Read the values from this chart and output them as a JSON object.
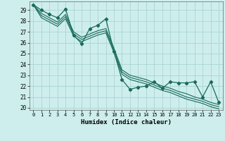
{
  "xlabel": "Humidex (Indice chaleur)",
  "bg_color": "#ceeeed",
  "grid_color": "#aed8d4",
  "line_color": "#1a6b5a",
  "xlim": [
    -0.5,
    23.5
  ],
  "ylim": [
    19.8,
    29.8
  ],
  "yticks": [
    20,
    21,
    22,
    23,
    24,
    25,
    26,
    27,
    28,
    29
  ],
  "xticks": [
    0,
    1,
    2,
    3,
    4,
    5,
    6,
    7,
    8,
    9,
    10,
    11,
    12,
    13,
    14,
    15,
    16,
    17,
    18,
    19,
    20,
    21,
    22,
    23
  ],
  "series": [
    [
      29.5,
      29.0,
      28.6,
      28.3,
      29.1,
      26.7,
      25.9,
      27.3,
      27.6,
      28.2,
      25.2,
      22.6,
      21.7,
      21.9,
      22.0,
      22.4,
      21.8,
      22.4,
      22.3,
      22.3,
      22.4,
      21.0,
      22.4,
      20.5
    ],
    [
      29.5,
      28.7,
      28.3,
      27.9,
      28.6,
      27.0,
      26.5,
      26.8,
      27.1,
      27.3,
      25.5,
      23.5,
      23.0,
      22.8,
      22.6,
      22.3,
      22.0,
      21.8,
      21.5,
      21.3,
      21.0,
      20.8,
      20.5,
      20.3
    ],
    [
      29.5,
      28.5,
      28.1,
      27.7,
      28.4,
      26.8,
      26.3,
      26.6,
      26.9,
      27.1,
      25.3,
      23.3,
      22.8,
      22.6,
      22.4,
      22.1,
      21.8,
      21.6,
      21.3,
      21.0,
      20.8,
      20.6,
      20.3,
      20.1
    ],
    [
      29.5,
      28.3,
      27.9,
      27.5,
      28.2,
      26.6,
      26.1,
      26.4,
      26.7,
      26.9,
      25.1,
      23.1,
      22.6,
      22.4,
      22.2,
      21.9,
      21.6,
      21.4,
      21.1,
      20.8,
      20.6,
      20.4,
      20.1,
      19.9
    ]
  ]
}
